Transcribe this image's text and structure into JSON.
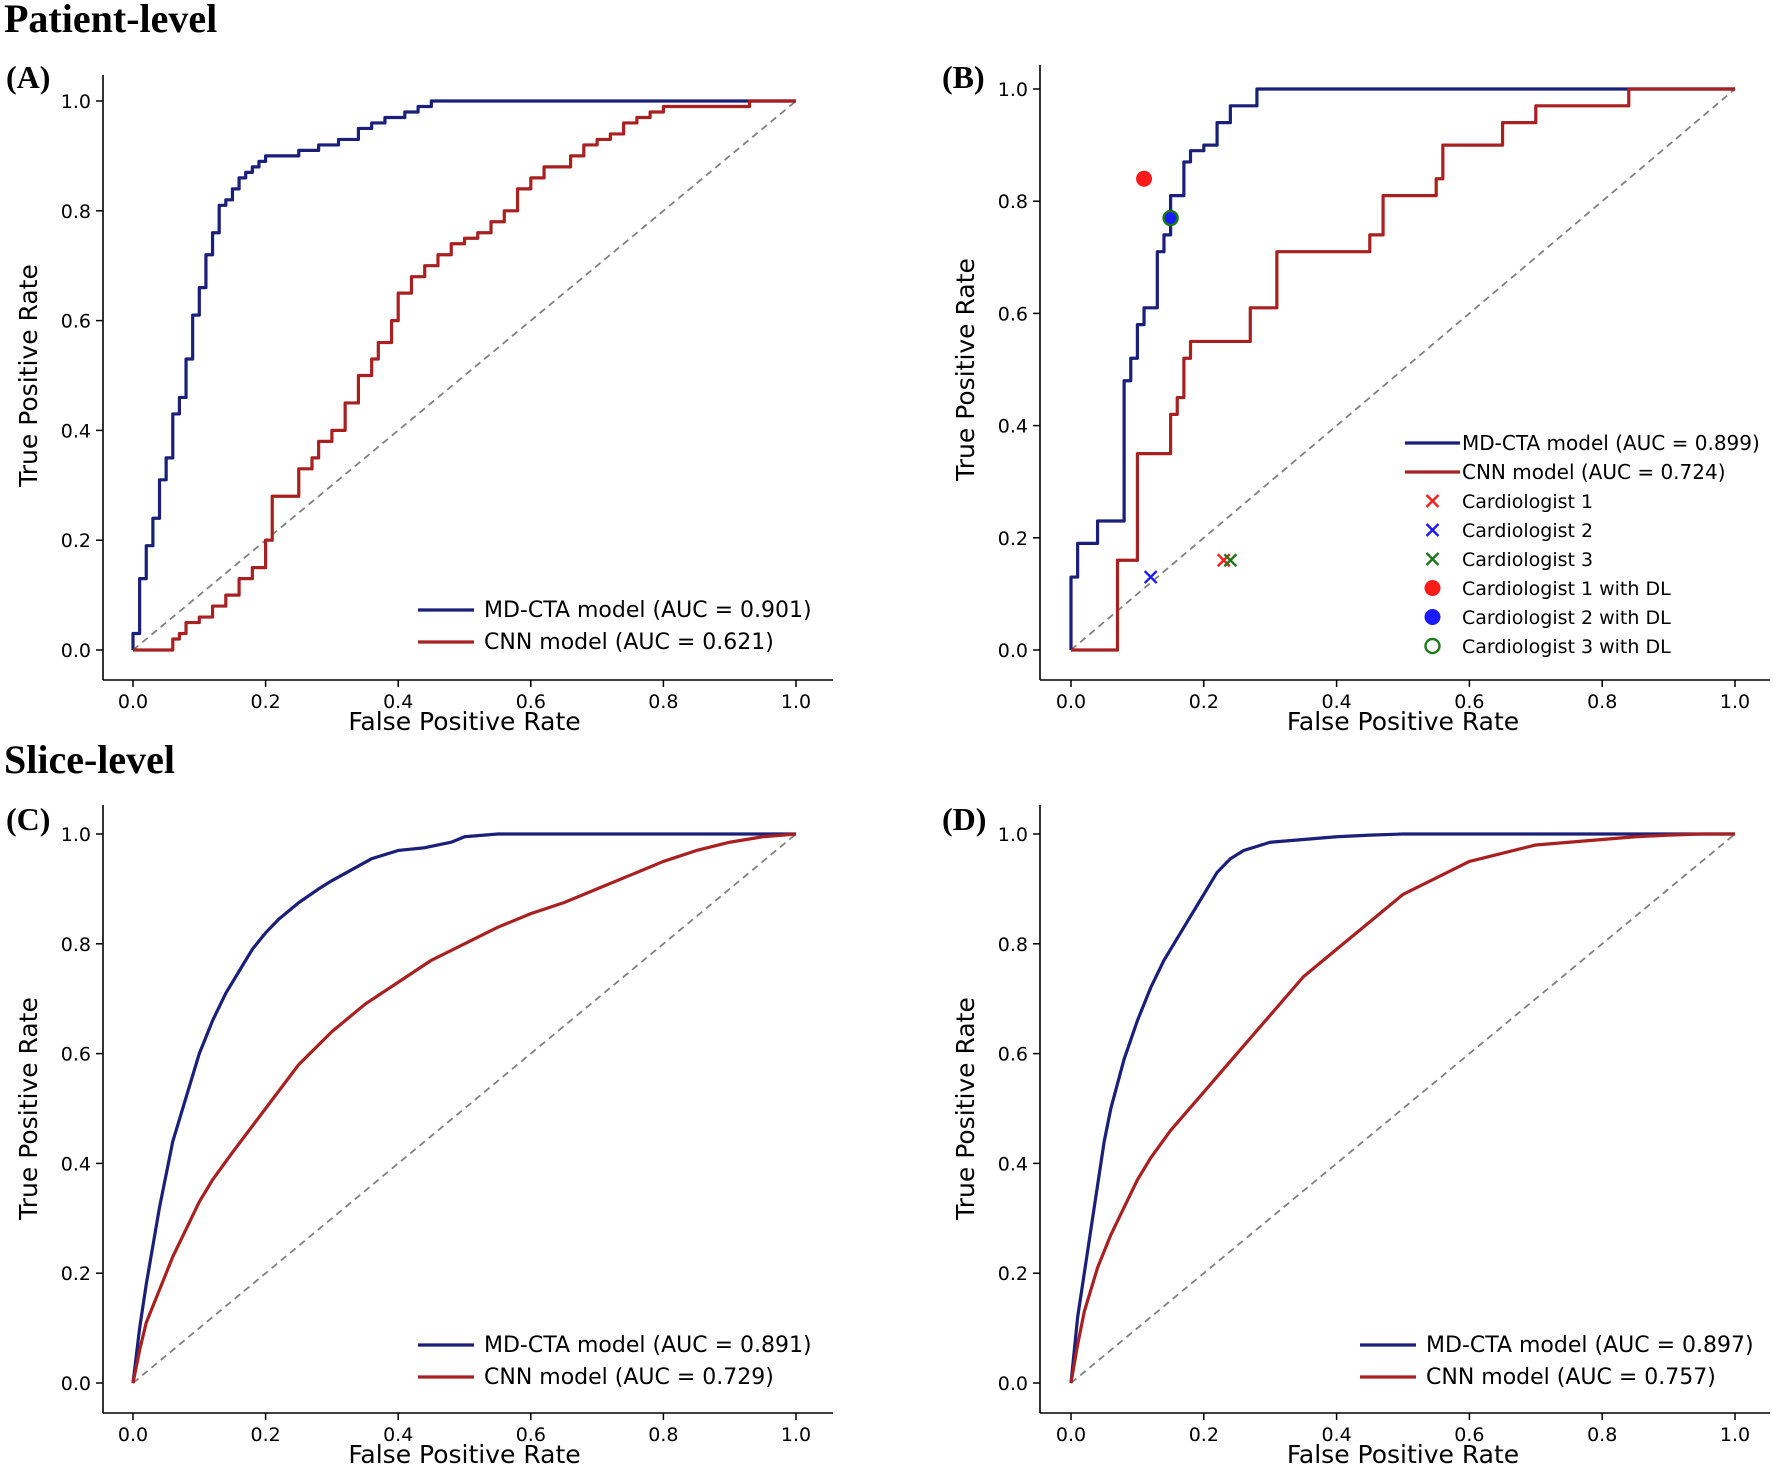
{
  "colors": {
    "blue": "#1a1f7a",
    "red": "#a82020",
    "diag": "#808080",
    "c1": "#ff1a1a",
    "c2": "#1a1aff",
    "c3": "#1a7a1a"
  },
  "sections": {
    "patient": "Patient-level",
    "slice": "Slice-level"
  },
  "chart_data": [
    {
      "panel": "(A)",
      "type": "line",
      "xlabel": "False Positive Rate",
      "ylabel": "True Positive Rate",
      "xlim": [
        0,
        1
      ],
      "ylim": [
        0,
        1
      ],
      "ticks": {
        "x": [
          "0.0",
          "0.2",
          "0.4",
          "0.6",
          "0.8",
          "1.0"
        ],
        "y": [
          "0.0",
          "0.2",
          "0.4",
          "0.6",
          "0.8",
          "1.0"
        ]
      },
      "legend_position": "bottom-right",
      "series": [
        {
          "name": "MD-CTA model (AUC = 0.901)",
          "color": "blue",
          "style": "step",
          "x": [
            0,
            0,
            0.01,
            0.01,
            0.02,
            0.02,
            0.03,
            0.03,
            0.04,
            0.04,
            0.05,
            0.06,
            0.06,
            0.07,
            0.07,
            0.08,
            0.08,
            0.09,
            0.09,
            0.1,
            0.1,
            0.11,
            0.11,
            0.12,
            0.12,
            0.13,
            0.13,
            0.14,
            0.14,
            0.15,
            0.15,
            0.16,
            0.16,
            0.17,
            0.18,
            0.18,
            0.19,
            0.2,
            0.2,
            0.21,
            0.22,
            0.25,
            0.25,
            0.28,
            0.28,
            0.31,
            0.31,
            0.34,
            0.34,
            0.36,
            0.36,
            0.38,
            0.38,
            0.4,
            0.41,
            0.41,
            0.43,
            0.43,
            0.45,
            0.45,
            0.48,
            1.0
          ],
          "y": [
            0,
            0.03,
            0.03,
            0.13,
            0.13,
            0.19,
            0.19,
            0.24,
            0.25,
            0.31,
            0.35,
            0.35,
            0.43,
            0.43,
            0.46,
            0.46,
            0.53,
            0.56,
            0.61,
            0.63,
            0.66,
            0.68,
            0.72,
            0.73,
            0.76,
            0.78,
            0.81,
            0.81,
            0.82,
            0.82,
            0.84,
            0.84,
            0.86,
            0.87,
            0.87,
            0.88,
            0.89,
            0.89,
            0.9,
            0.9,
            0.9,
            0.9,
            0.91,
            0.91,
            0.92,
            0.92,
            0.93,
            0.93,
            0.95,
            0.95,
            0.96,
            0.96,
            0.97,
            0.97,
            0.97,
            0.98,
            0.98,
            0.99,
            0.99,
            1.0,
            1.0,
            1.0
          ]
        },
        {
          "name": "CNN model (AUC = 0.621)",
          "color": "red",
          "style": "step",
          "x": [
            0,
            0.05,
            0.06,
            0.07,
            0.08,
            0.1,
            0.12,
            0.14,
            0.16,
            0.18,
            0.2,
            0.21,
            0.21,
            0.24,
            0.25,
            0.27,
            0.28,
            0.3,
            0.32,
            0.34,
            0.36,
            0.37,
            0.39,
            0.4,
            0.4,
            0.42,
            0.44,
            0.46,
            0.48,
            0.5,
            0.52,
            0.54,
            0.56,
            0.58,
            0.6,
            0.62,
            0.64,
            0.66,
            0.68,
            0.7,
            0.72,
            0.74,
            0.76,
            0.78,
            0.8,
            0.82,
            0.85,
            0.9,
            0.93,
            0.93,
            1.0
          ],
          "y": [
            0,
            0,
            0.02,
            0.03,
            0.05,
            0.06,
            0.08,
            0.1,
            0.13,
            0.15,
            0.2,
            0.22,
            0.28,
            0.28,
            0.33,
            0.35,
            0.38,
            0.4,
            0.45,
            0.5,
            0.53,
            0.56,
            0.6,
            0.6,
            0.65,
            0.68,
            0.7,
            0.72,
            0.74,
            0.75,
            0.76,
            0.78,
            0.8,
            0.84,
            0.86,
            0.88,
            0.88,
            0.9,
            0.92,
            0.93,
            0.94,
            0.96,
            0.97,
            0.98,
            0.99,
            0.99,
            0.99,
            0.99,
            0.99,
            1.0,
            1.0
          ]
        }
      ]
    },
    {
      "panel": "(B)",
      "type": "line",
      "xlabel": "False Positive Rate",
      "ylabel": "True Positive Rate",
      "xlim": [
        0,
        1
      ],
      "ylim": [
        0,
        1
      ],
      "ticks": {
        "x": [
          "0.0",
          "0.2",
          "0.4",
          "0.6",
          "0.8",
          "1.0"
        ],
        "y": [
          "0.0",
          "0.2",
          "0.4",
          "0.6",
          "0.8",
          "1.0"
        ]
      },
      "legend_position": "center-right",
      "series": [
        {
          "name": "MD-CTA model (AUC = 0.899)",
          "color": "blue",
          "style": "step",
          "x": [
            0,
            0,
            0.01,
            0.01,
            0.04,
            0.04,
            0.08,
            0.08,
            0.09,
            0.09,
            0.1,
            0.1,
            0.11,
            0.11,
            0.13,
            0.13,
            0.14,
            0.14,
            0.15,
            0.15,
            0.17,
            0.17,
            0.18,
            0.18,
            0.2,
            0.2,
            0.22,
            0.22,
            0.24,
            0.24,
            0.26,
            0.26,
            0.28,
            0.28,
            1.0
          ],
          "y": [
            0,
            0.13,
            0.13,
            0.19,
            0.19,
            0.23,
            0.23,
            0.48,
            0.48,
            0.52,
            0.52,
            0.58,
            0.58,
            0.61,
            0.61,
            0.71,
            0.71,
            0.74,
            0.74,
            0.81,
            0.81,
            0.87,
            0.87,
            0.89,
            0.89,
            0.9,
            0.9,
            0.94,
            0.94,
            0.97,
            0.97,
            0.97,
            0.97,
            1.0,
            1.0
          ]
        },
        {
          "name": "CNN model (AUC = 0.724)",
          "color": "red",
          "style": "step",
          "x": [
            0,
            0.07,
            0.07,
            0.1,
            0.1,
            0.12,
            0.12,
            0.15,
            0.15,
            0.16,
            0.16,
            0.17,
            0.17,
            0.18,
            0.18,
            0.21,
            0.21,
            0.27,
            0.27,
            0.31,
            0.31,
            0.4,
            0.4,
            0.45,
            0.45,
            0.47,
            0.47,
            0.51,
            0.51,
            0.55,
            0.55,
            0.56,
            0.56,
            0.6,
            0.6,
            0.65,
            0.65,
            0.7,
            0.7,
            0.84,
            0.84,
            1.0
          ],
          "y": [
            0,
            0,
            0.16,
            0.16,
            0.35,
            0.35,
            0.35,
            0.35,
            0.42,
            0.42,
            0.45,
            0.45,
            0.52,
            0.52,
            0.55,
            0.55,
            0.55,
            0.55,
            0.61,
            0.61,
            0.71,
            0.71,
            0.71,
            0.71,
            0.74,
            0.74,
            0.81,
            0.81,
            0.81,
            0.81,
            0.84,
            0.84,
            0.9,
            0.9,
            0.9,
            0.9,
            0.94,
            0.94,
            0.97,
            0.97,
            1.0,
            1.0
          ]
        }
      ],
      "points": [
        {
          "name": "Cardiologist 1",
          "x": 0.23,
          "y": 0.16,
          "marker": "x",
          "color": "c1"
        },
        {
          "name": "Cardiologist 2",
          "x": 0.12,
          "y": 0.13,
          "marker": "x",
          "color": "c2"
        },
        {
          "name": "Cardiologist 3",
          "x": 0.24,
          "y": 0.16,
          "marker": "x",
          "color": "c3"
        },
        {
          "name": "Cardiologist 1 with DL",
          "x": 0.11,
          "y": 0.84,
          "marker": "o",
          "color": "c1"
        },
        {
          "name": "Cardiologist 2 with DL",
          "x": 0.15,
          "y": 0.77,
          "marker": "o",
          "color": "c2"
        },
        {
          "name": "Cardiologist 3 with DL",
          "x": 0.15,
          "y": 0.77,
          "marker": "o-open",
          "color": "c3"
        }
      ]
    },
    {
      "panel": "(C)",
      "type": "line",
      "xlabel": "False Positive Rate",
      "ylabel": "True Positive Rate",
      "xlim": [
        0,
        1
      ],
      "ylim": [
        0,
        1
      ],
      "ticks": {
        "x": [
          "0.0",
          "0.2",
          "0.4",
          "0.6",
          "0.8",
          "1.0"
        ],
        "y": [
          "0.0",
          "0.2",
          "0.4",
          "0.6",
          "0.8",
          "1.0"
        ]
      },
      "legend_position": "bottom-right",
      "series": [
        {
          "name": "MD-CTA model (AUC = 0.891)",
          "color": "blue",
          "style": "smooth",
          "x": [
            0,
            0.005,
            0.01,
            0.02,
            0.03,
            0.04,
            0.05,
            0.06,
            0.08,
            0.1,
            0.12,
            0.14,
            0.16,
            0.18,
            0.2,
            0.22,
            0.25,
            0.28,
            0.3,
            0.33,
            0.36,
            0.4,
            0.44,
            0.48,
            0.5,
            0.55,
            0.6,
            0.7,
            0.8,
            0.9,
            1.0
          ],
          "y": [
            0,
            0.05,
            0.1,
            0.18,
            0.25,
            0.32,
            0.38,
            0.44,
            0.52,
            0.6,
            0.66,
            0.71,
            0.75,
            0.79,
            0.82,
            0.845,
            0.875,
            0.9,
            0.915,
            0.935,
            0.955,
            0.97,
            0.975,
            0.985,
            0.995,
            1.0,
            1.0,
            1.0,
            1.0,
            1.0,
            1.0
          ]
        },
        {
          "name": "CNN model (AUC = 0.729)",
          "color": "red",
          "style": "smooth",
          "x": [
            0,
            0.01,
            0.02,
            0.04,
            0.06,
            0.08,
            0.1,
            0.12,
            0.15,
            0.2,
            0.25,
            0.3,
            0.35,
            0.4,
            0.45,
            0.5,
            0.55,
            0.6,
            0.65,
            0.7,
            0.75,
            0.8,
            0.85,
            0.9,
            0.95,
            1.0
          ],
          "y": [
            0,
            0.06,
            0.11,
            0.17,
            0.23,
            0.28,
            0.33,
            0.37,
            0.42,
            0.5,
            0.58,
            0.64,
            0.69,
            0.73,
            0.77,
            0.8,
            0.83,
            0.855,
            0.875,
            0.9,
            0.925,
            0.95,
            0.97,
            0.985,
            0.995,
            1.0
          ]
        }
      ]
    },
    {
      "panel": "(D)",
      "type": "line",
      "xlabel": "False Positive Rate",
      "ylabel": "True Positive Rate",
      "xlim": [
        0,
        1
      ],
      "ylim": [
        0,
        1
      ],
      "ticks": {
        "x": [
          "0.0",
          "0.2",
          "0.4",
          "0.6",
          "0.8",
          "1.0"
        ],
        "y": [
          "0.0",
          "0.2",
          "0.4",
          "0.6",
          "0.8",
          "1.0"
        ]
      },
      "legend_position": "bottom-right",
      "series": [
        {
          "name": "MD-CTA model (AUC = 0.897)",
          "color": "blue",
          "style": "smooth",
          "x": [
            0,
            0.005,
            0.01,
            0.02,
            0.03,
            0.04,
            0.05,
            0.06,
            0.08,
            0.1,
            0.12,
            0.14,
            0.16,
            0.18,
            0.2,
            0.22,
            0.24,
            0.26,
            0.3,
            0.35,
            0.4,
            0.45,
            0.5,
            0.6,
            0.8,
            1.0
          ],
          "y": [
            0,
            0.06,
            0.12,
            0.2,
            0.28,
            0.36,
            0.44,
            0.5,
            0.59,
            0.66,
            0.72,
            0.77,
            0.81,
            0.85,
            0.89,
            0.93,
            0.955,
            0.97,
            0.985,
            0.99,
            0.995,
            0.998,
            1.0,
            1.0,
            1.0,
            1.0
          ]
        },
        {
          "name": "CNN model (AUC = 0.757)",
          "color": "red",
          "style": "smooth",
          "x": [
            0,
            0.01,
            0.02,
            0.04,
            0.06,
            0.08,
            0.1,
            0.12,
            0.15,
            0.2,
            0.25,
            0.3,
            0.35,
            0.4,
            0.45,
            0.5,
            0.55,
            0.6,
            0.65,
            0.7,
            0.75,
            0.8,
            0.85,
            0.9,
            0.95,
            1.0
          ],
          "y": [
            0,
            0.07,
            0.13,
            0.21,
            0.27,
            0.32,
            0.37,
            0.41,
            0.46,
            0.53,
            0.6,
            0.67,
            0.74,
            0.79,
            0.84,
            0.89,
            0.92,
            0.95,
            0.965,
            0.98,
            0.985,
            0.99,
            0.995,
            0.998,
            1.0,
            1.0
          ]
        }
      ]
    }
  ]
}
